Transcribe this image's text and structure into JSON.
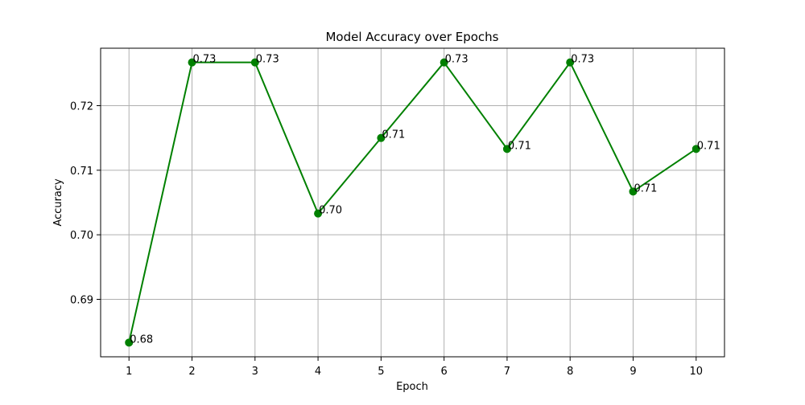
{
  "chart_data": {
    "type": "line",
    "title": "Model Accuracy over Epochs",
    "xlabel": "Epoch",
    "ylabel": "Accuracy",
    "x": [
      1,
      2,
      3,
      4,
      5,
      6,
      7,
      8,
      9,
      10
    ],
    "series": [
      {
        "values": [
          0.6833,
          0.7267,
          0.7267,
          0.7033,
          0.715,
          0.7267,
          0.7133,
          0.7267,
          0.7067,
          0.7133
        ],
        "data_labels": [
          "0.68",
          "0.73",
          "0.73",
          "0.70",
          "0.71",
          "0.73",
          "0.71",
          "0.73",
          "0.71",
          "0.71"
        ],
        "color": "#008000",
        "marker": "circle"
      }
    ],
    "xticks": [
      1,
      2,
      3,
      4,
      5,
      6,
      7,
      8,
      9,
      10
    ],
    "xtick_labels": [
      "1",
      "2",
      "3",
      "4",
      "5",
      "6",
      "7",
      "8",
      "9",
      "10"
    ],
    "yticks": [
      0.69,
      0.7,
      0.71,
      0.72
    ],
    "ytick_labels": [
      "0.69",
      "0.70",
      "0.71",
      "0.72"
    ],
    "xlim": [
      0.55,
      10.45
    ],
    "ylim": [
      0.6811,
      0.7289
    ],
    "grid": true,
    "grid_color": "#b0b0b0",
    "axis_color": "#000000"
  }
}
